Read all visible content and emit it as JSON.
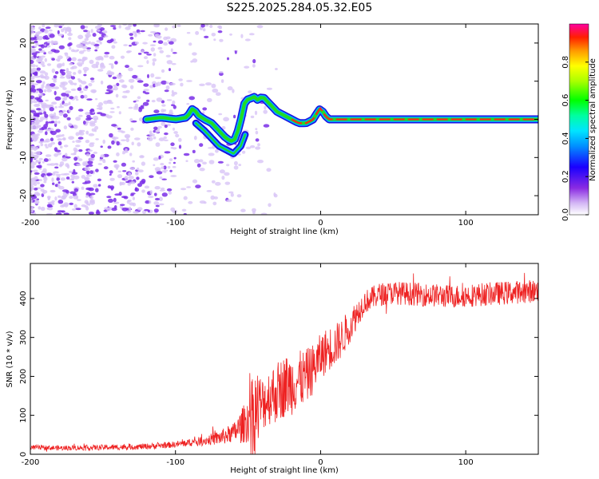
{
  "title": "S225.2025.284.05.32.E05",
  "colors": {
    "snr_line": "#ee2222",
    "carrier_core": "#ff2020",
    "carrier_mid": "#22dd22",
    "carrier_edge": "#00a8ff",
    "carrier_outer": "#1a10e0",
    "noise": "#7a2ee8",
    "noise_faint": "#d8c4f6"
  },
  "chart_data": [
    {
      "type": "heatmap",
      "name": "spectrogram",
      "xlabel": "Height of straight line (km)",
      "ylabel": "Frequency (Hz)",
      "xlim": [
        -200,
        150
      ],
      "ylim": [
        -25,
        25
      ],
      "x_ticks": [
        "-200",
        "-100",
        "0",
        "100"
      ],
      "x_tick_values": [
        -200,
        -100,
        0,
        100
      ],
      "y_ticks": [
        "-20",
        "-10",
        "0",
        "10",
        "20"
      ],
      "y_tick_values": [
        -20,
        -10,
        0,
        10,
        20
      ],
      "carrier_track": {
        "x": [
          -120,
          -110,
          -100,
          -92,
          -88,
          -84,
          -80,
          -75,
          -70,
          -65,
          -60,
          -56,
          -52,
          -48,
          -46,
          -44,
          -40,
          -35,
          -30,
          -25,
          -20,
          -15,
          -10,
          -5,
          -2,
          0,
          3,
          6,
          10,
          20,
          40,
          60,
          70,
          80,
          90,
          100,
          120,
          150
        ],
        "y": [
          0,
          0.5,
          0,
          0.5,
          3,
          1,
          0,
          -1,
          -3,
          -5,
          -6,
          -2,
          5,
          5.5,
          6,
          5,
          6,
          4,
          2,
          1,
          0,
          -1,
          -1,
          0,
          2,
          3,
          1,
          0,
          0,
          0,
          0,
          0,
          0,
          0,
          0,
          0,
          0,
          0
        ]
      },
      "side_branch": {
        "x": [
          -86,
          -80,
          -75,
          -70,
          -65,
          -60,
          -55,
          -52
        ],
        "y": [
          -1,
          -3,
          -5,
          -7,
          -8,
          -9,
          -7,
          -4
        ]
      },
      "noise_region": [
        -200,
        -50
      ]
    },
    {
      "type": "colorbar",
      "name": "colorbar",
      "label": "Normalized spectral amplitude",
      "range": [
        0,
        1
      ],
      "ticks": [
        "0.0",
        "0.2",
        "0.4",
        "0.6",
        "0.8"
      ],
      "tick_values": [
        0,
        0.2,
        0.4,
        0.6,
        0.8
      ]
    },
    {
      "type": "line",
      "name": "snr",
      "xlabel": "Height of straight line (km)",
      "ylabel": "SNR (10 * v/v)",
      "xlim": [
        -200,
        150
      ],
      "ylim": [
        0,
        490
      ],
      "x_ticks": [
        "-200",
        "-100",
        "0",
        "100"
      ],
      "x_tick_values": [
        -200,
        -100,
        0,
        100
      ],
      "y_ticks": [
        "0",
        "100",
        "200",
        "300",
        "400"
      ],
      "y_tick_values": [
        0,
        100,
        200,
        300,
        400
      ],
      "trend": {
        "x": [
          -200,
          -180,
          -160,
          -140,
          -120,
          -100,
          -90,
          -80,
          -70,
          -60,
          -55,
          -50,
          -45,
          -40,
          -35,
          -30,
          -25,
          -20,
          -15,
          -10,
          -5,
          0,
          5,
          10,
          15,
          20,
          25,
          30,
          40,
          50,
          70,
          90,
          110,
          130,
          150
        ],
        "y": [
          18,
          16,
          17,
          18,
          20,
          25,
          30,
          35,
          42,
          55,
          70,
          90,
          110,
          130,
          150,
          160,
          175,
          180,
          190,
          200,
          220,
          250,
          270,
          280,
          300,
          330,
          360,
          390,
          410,
          415,
          410,
          405,
          410,
          415,
          420
        ]
      },
      "amplitude": {
        "x": [
          -200,
          -100,
          -80,
          -60,
          -50,
          -45,
          -40,
          -30,
          -20,
          -10,
          0,
          10,
          20,
          30,
          40,
          150
        ],
        "y": [
          6,
          8,
          12,
          25,
          60,
          120,
          70,
          80,
          80,
          70,
          60,
          55,
          45,
          30,
          30,
          30
        ]
      }
    }
  ]
}
